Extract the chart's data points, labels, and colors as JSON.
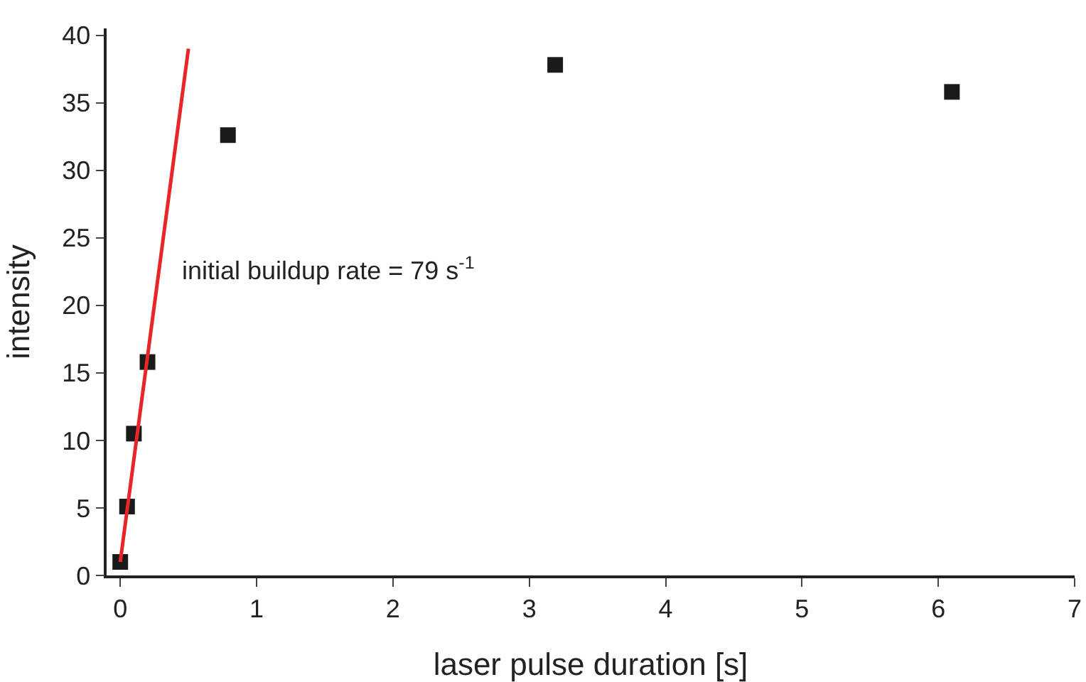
{
  "chart_data": {
    "type": "scatter",
    "xlabel": "laser pulse duration [s]",
    "ylabel": "intensity",
    "annotations": [
      "initial buildup rate = 79 s$^{-1}$"
    ],
    "xlim": [
      -0.1,
      7
    ],
    "xticks": [
      0,
      1,
      2,
      3,
      4,
      5,
      6,
      7
    ],
    "ylim": [
      0,
      40.5
    ],
    "yticks": [
      0,
      5,
      10,
      15,
      20,
      25,
      30,
      35,
      40
    ],
    "grid": false,
    "marker": "square",
    "series": [
      {
        "color": "#1a1a1a",
        "x": [
          0,
          0.05,
          0.1,
          0.2,
          0.79,
          3.19,
          6.1
        ],
        "values": [
          1.0,
          5.1,
          10.5,
          15.8,
          32.6,
          37.8,
          35.8
        ]
      },
      {
        "type": "line",
        "color": "#e8262a",
        "marker": "none",
        "line_style": "solid",
        "x": [
          0,
          0.5
        ],
        "values": [
          1.0,
          39.0
        ]
      }
    ]
  }
}
